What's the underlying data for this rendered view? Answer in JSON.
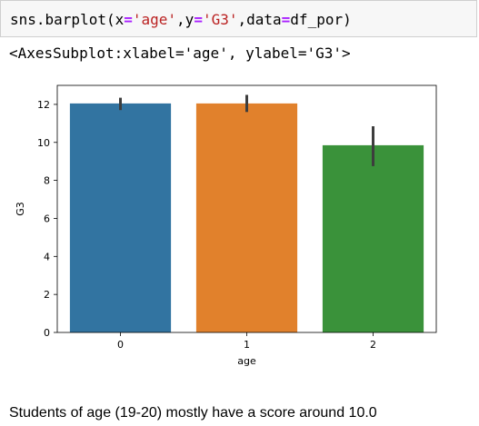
{
  "code_cell": {
    "parts": [
      {
        "text": "sns.barplot(x",
        "cls": ""
      },
      {
        "text": "=",
        "cls": "tok-op"
      },
      {
        "text": "'age'",
        "cls": "tok-str"
      },
      {
        "text": ",y",
        "cls": ""
      },
      {
        "text": "=",
        "cls": "tok-op"
      },
      {
        "text": "'G3'",
        "cls": "tok-str"
      },
      {
        "text": ",data",
        "cls": ""
      },
      {
        "text": "=",
        "cls": "tok-op"
      },
      {
        "text": "df_por)",
        "cls": ""
      }
    ]
  },
  "output_text": "<AxesSubplot:xlabel='age', ylabel='G3'>",
  "chart_data": {
    "type": "bar",
    "categories": [
      "0",
      "1",
      "2"
    ],
    "values": [
      12.05,
      12.05,
      9.85
    ],
    "error_low": [
      11.7,
      11.6,
      8.75
    ],
    "error_high": [
      12.35,
      12.5,
      10.85
    ],
    "colors": [
      "#3274a1",
      "#e1812c",
      "#3a923a"
    ],
    "xlabel": "age",
    "ylabel": "G3",
    "ylim": [
      0,
      13
    ],
    "yticks": [
      0,
      2,
      4,
      6,
      8,
      10,
      12
    ],
    "grid": false
  },
  "note": "Students of age (19-20) mostly have a score around 10.0"
}
